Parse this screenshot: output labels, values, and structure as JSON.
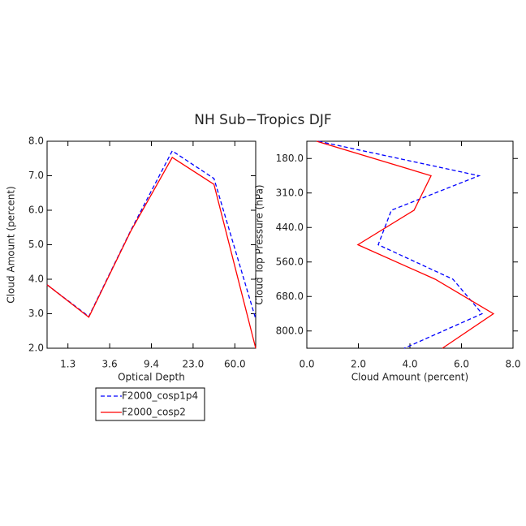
{
  "title": "NH Sub−Tropics DJF",
  "chart_data": [
    {
      "type": "line",
      "xlabel": "Optical Depth",
      "ylabel": "Cloud Amount (percent)",
      "x": [
        0,
        1,
        2,
        3,
        4,
        5
      ],
      "xlim": [
        0,
        5
      ],
      "xticks": [
        {
          "value": 0.5,
          "label": "1.3"
        },
        {
          "value": 1.5,
          "label": "3.6"
        },
        {
          "value": 2.5,
          "label": "9.4"
        },
        {
          "value": 3.5,
          "label": "23.0"
        },
        {
          "value": 4.5,
          "label": "60.0"
        }
      ],
      "ylim": [
        2,
        8
      ],
      "yticks": [
        {
          "value": 2,
          "label": "2.0"
        },
        {
          "value": 3,
          "label": "3.0"
        },
        {
          "value": 4,
          "label": "4.0"
        },
        {
          "value": 5,
          "label": "5.0"
        },
        {
          "value": 6,
          "label": "6.0"
        },
        {
          "value": 7,
          "label": "7.0"
        },
        {
          "value": 8,
          "label": "8.0"
        }
      ],
      "series": [
        {
          "name": "F2000_cosp1p4",
          "color": "#0000ff",
          "dash": true,
          "values": [
            3.84,
            2.92,
            5.4,
            7.72,
            6.92,
            2.85
          ]
        },
        {
          "name": "F2000_cosp2",
          "color": "#ff0000",
          "dash": false,
          "values": [
            3.84,
            2.9,
            5.38,
            7.53,
            6.75,
            2.0
          ]
        }
      ]
    },
    {
      "type": "hline",
      "xlabel": "Cloud Amount (percent)",
      "ylabel": "Cloud Top Pressure (hPa)",
      "y": [
        0,
        1,
        2,
        3,
        4,
        5,
        6
      ],
      "ylim": [
        6,
        0
      ],
      "yticks": [
        {
          "value": 0.5,
          "label": "180.0"
        },
        {
          "value": 1.5,
          "label": "310.0"
        },
        {
          "value": 2.5,
          "label": "440.0"
        },
        {
          "value": 3.5,
          "label": "560.0"
        },
        {
          "value": 4.5,
          "label": "680.0"
        },
        {
          "value": 5.5,
          "label": "800.0"
        }
      ],
      "xlim": [
        0,
        8
      ],
      "xticks": [
        {
          "value": 0,
          "label": "0.0"
        },
        {
          "value": 2,
          "label": "2.0"
        },
        {
          "value": 4,
          "label": "4.0"
        },
        {
          "value": 6,
          "label": "6.0"
        },
        {
          "value": 8,
          "label": "8.0"
        }
      ],
      "series": [
        {
          "color": "#0000ff",
          "dash": true,
          "values": [
            0.45,
            6.68,
            3.28,
            2.77,
            5.67,
            6.8,
            3.78
          ]
        },
        {
          "color": "#ff0000",
          "dash": false,
          "values": [
            0.38,
            4.82,
            4.16,
            1.98,
            4.98,
            7.24,
            5.26
          ]
        }
      ]
    }
  ]
}
